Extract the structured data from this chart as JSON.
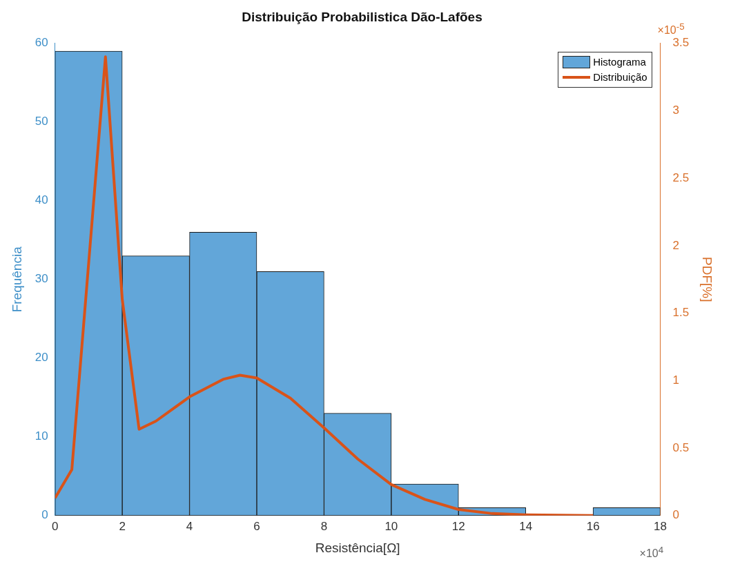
{
  "chart_data": {
    "type": "histogram",
    "title": "Distribuição Probabilistica Dão-Lafões",
    "xlabel": "Resistência[Ω]",
    "ylabel": "Frequência",
    "y2label": "PDF[%]",
    "bins": [
      0,
      2,
      4,
      6,
      8,
      10,
      12,
      14,
      16,
      18
    ],
    "series": [
      {
        "name": "Histograma",
        "color": "#62a6d9",
        "values": [
          59,
          33,
          36,
          31,
          13,
          4,
          1,
          0,
          1
        ]
      },
      {
        "name": "Distribuição",
        "type": "line",
        "axis": "y2",
        "color": "#d95319",
        "x": [
          0,
          0.5,
          1.5,
          2,
          2.5,
          3,
          4,
          5,
          5.5,
          6,
          7,
          8,
          9,
          10,
          11,
          12,
          13,
          14,
          16
        ],
        "values": [
          0.13,
          0.34,
          3.4,
          1.6,
          0.64,
          0.7,
          0.88,
          1.01,
          1.04,
          1.02,
          0.87,
          0.65,
          0.42,
          0.23,
          0.12,
          0.045,
          0.015,
          0.005,
          0
        ]
      }
    ],
    "xlim": [
      0,
      18
    ],
    "xticks": [
      0,
      2,
      4,
      6,
      8,
      10,
      12,
      14,
      16,
      18
    ],
    "ylim": [
      0,
      60
    ],
    "yticks": [
      0,
      10,
      20,
      30,
      40,
      50,
      60
    ],
    "y2lim": [
      0,
      3.5
    ],
    "y2ticks": [
      0,
      0.5,
      1,
      1.5,
      2,
      2.5,
      3,
      3.5
    ],
    "annotations": [
      "×10$^{4}$",
      "×10$^{-5}$"
    ],
    "legend": "top right",
    "line_style": "solid",
    "marker": "none"
  }
}
